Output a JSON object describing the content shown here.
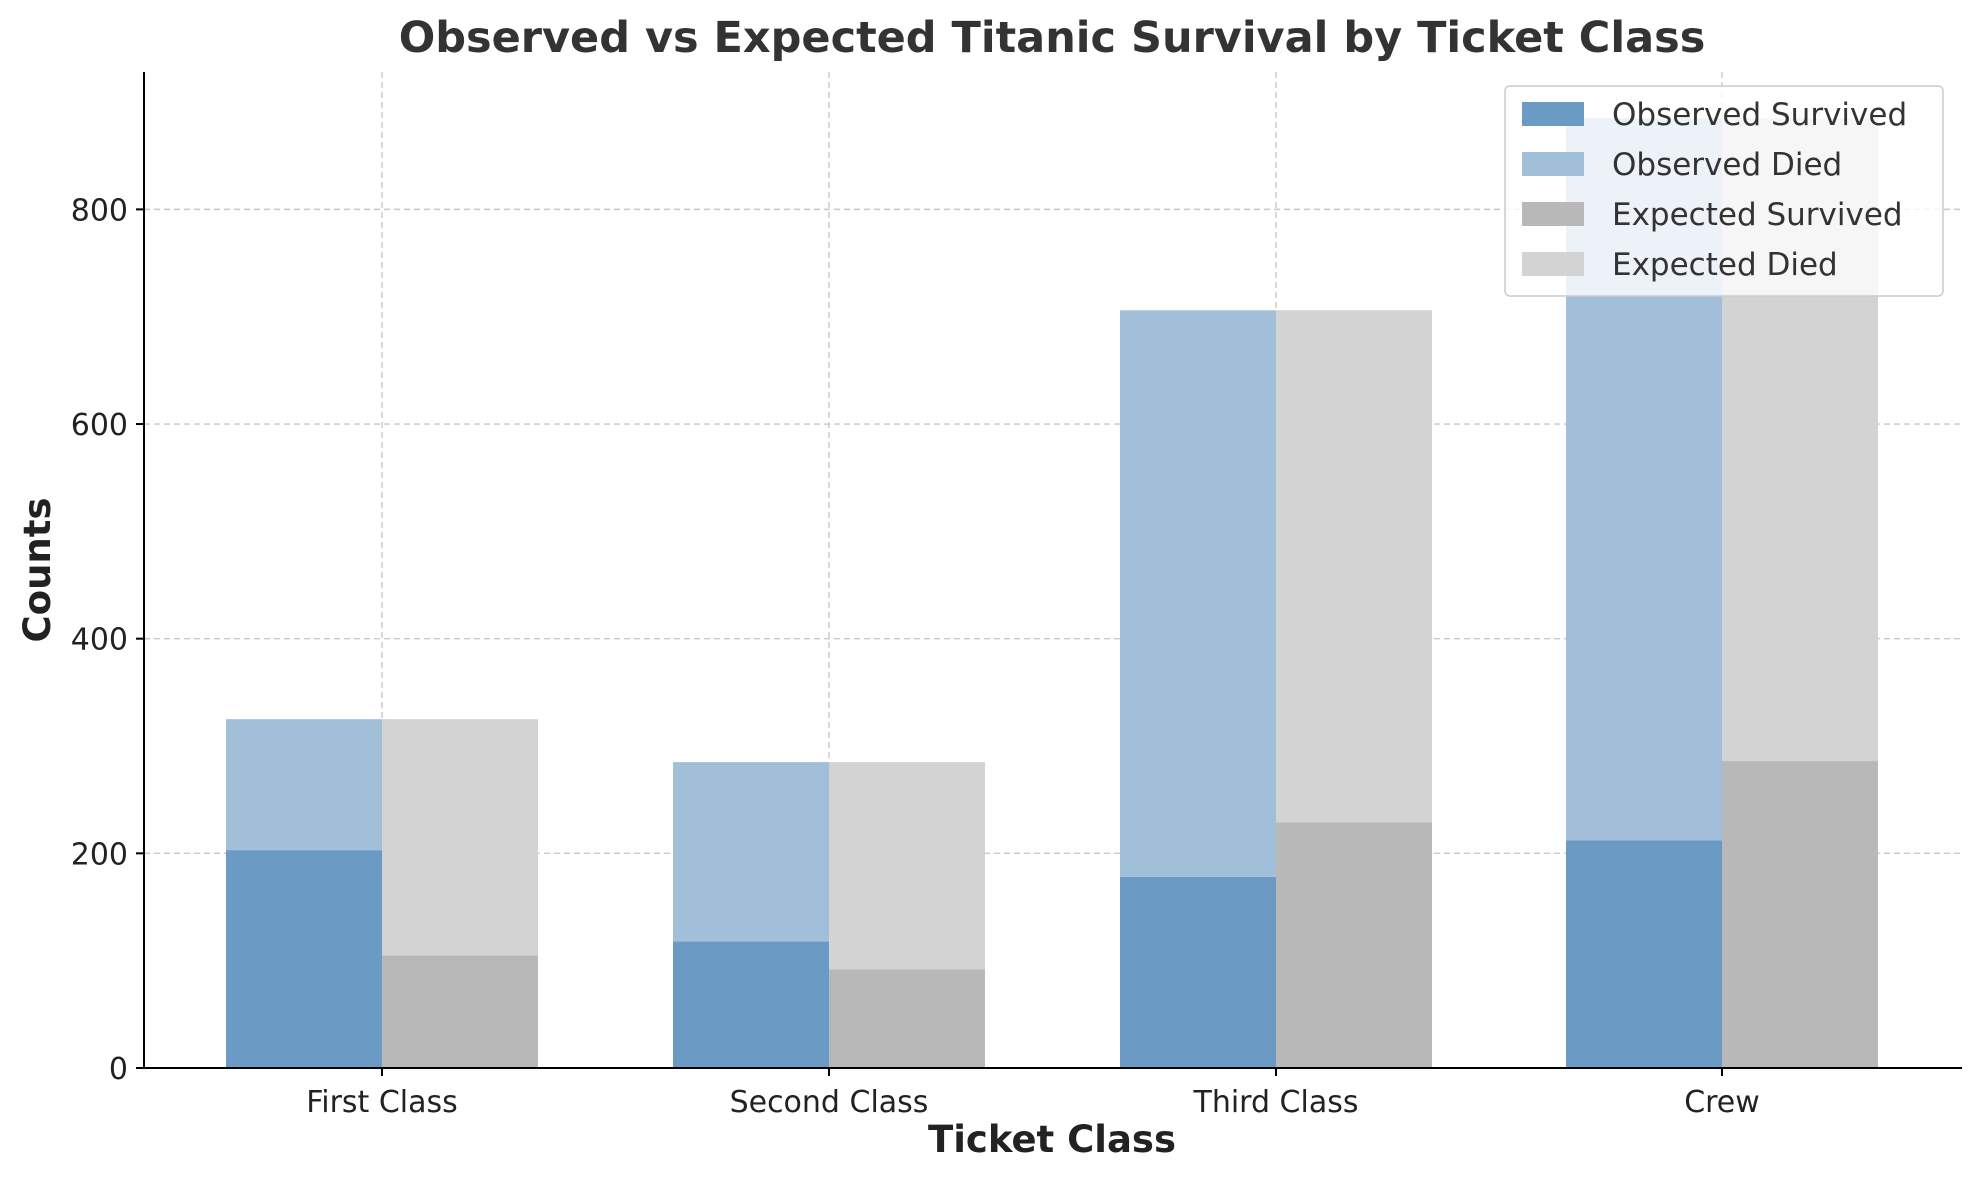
{
  "chart_data": {
    "type": "bar",
    "title": "Observed vs Expected Titanic Survival by Ticket Class",
    "xlabel": "Ticket Class",
    "ylabel": "Counts",
    "categories": [
      "First Class",
      "Second Class",
      "Third Class",
      "Crew"
    ],
    "ylim": [
      0,
      928
    ],
    "yticks": [
      0,
      200,
      400,
      600,
      800
    ],
    "grid": true,
    "legend_position": "top-right",
    "series": [
      {
        "name": "Observed Survived",
        "group": "observed",
        "stack": "bottom",
        "color": "#6b9ac4",
        "values": [
          203,
          118,
          178,
          212
        ]
      },
      {
        "name": "Observed Died",
        "group": "observed",
        "stack": "top",
        "color": "#a2bfd9",
        "values": [
          122,
          167,
          528,
          673
        ]
      },
      {
        "name": "Expected Survived",
        "group": "expected",
        "stack": "bottom",
        "color": "#b8b8b8",
        "values": [
          105,
          92,
          229,
          286
        ]
      },
      {
        "name": "Expected Died",
        "group": "expected",
        "stack": "top",
        "color": "#d3d3d3",
        "values": [
          220,
          193,
          477,
          599
        ]
      }
    ]
  }
}
